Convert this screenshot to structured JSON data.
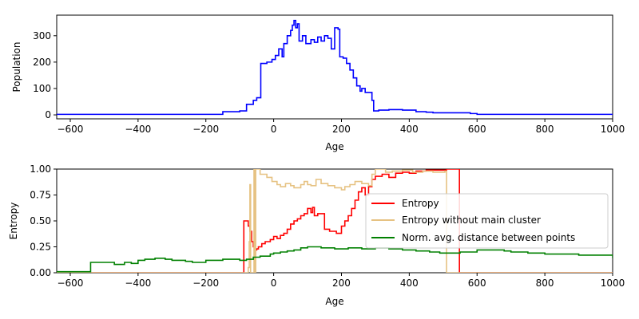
{
  "chart_data": [
    {
      "type": "line",
      "xlabel": "Age",
      "ylabel": "Population",
      "xlim": [
        -640,
        1000
      ],
      "ylim": [
        -15,
        378
      ],
      "xticks": [
        -600,
        -400,
        -200,
        0,
        200,
        400,
        600,
        800,
        1000
      ],
      "yticks": [
        0,
        100,
        200,
        300
      ],
      "grid": false,
      "series": [
        {
          "color": "#0000ff",
          "step": true,
          "points": [
            [
              -640,
              2
            ],
            [
              -160,
              2
            ],
            [
              -150,
              12
            ],
            [
              -100,
              15
            ],
            [
              -80,
              40
            ],
            [
              -60,
              55
            ],
            [
              -50,
              65
            ],
            [
              -40,
              65
            ],
            [
              -38,
              195
            ],
            [
              -20,
              200
            ],
            [
              -5,
              210
            ],
            [
              5,
              225
            ],
            [
              15,
              250
            ],
            [
              25,
              220
            ],
            [
              30,
              270
            ],
            [
              40,
              300
            ],
            [
              50,
              320
            ],
            [
              55,
              340
            ],
            [
              60,
              358
            ],
            [
              65,
              330
            ],
            [
              70,
              345
            ],
            [
              75,
              280
            ],
            [
              85,
              300
            ],
            [
              95,
              270
            ],
            [
              110,
              285
            ],
            [
              120,
              275
            ],
            [
              130,
              295
            ],
            [
              140,
              280
            ],
            [
              150,
              300
            ],
            [
              160,
              290
            ],
            [
              170,
              250
            ],
            [
              180,
              330
            ],
            [
              190,
              325
            ],
            [
              195,
              220
            ],
            [
              205,
              215
            ],
            [
              215,
              195
            ],
            [
              225,
              170
            ],
            [
              235,
              140
            ],
            [
              245,
              110
            ],
            [
              255,
              90
            ],
            [
              260,
              100
            ],
            [
              270,
              85
            ],
            [
              280,
              85
            ],
            [
              290,
              55
            ],
            [
              295,
              15
            ],
            [
              310,
              18
            ],
            [
              340,
              20
            ],
            [
              380,
              18
            ],
            [
              420,
              12
            ],
            [
              450,
              10
            ],
            [
              470,
              8
            ],
            [
              520,
              8
            ],
            [
              580,
              5
            ],
            [
              600,
              2
            ],
            [
              1000,
              2
            ]
          ]
        }
      ]
    },
    {
      "type": "line",
      "xlabel": "Age",
      "ylabel": "Entropy",
      "xlim": [
        -640,
        1000
      ],
      "ylim": [
        0,
        1
      ],
      "xticks": [
        -600,
        -400,
        -200,
        0,
        200,
        400,
        600,
        800,
        1000
      ],
      "yticks": [
        0.0,
        0.25,
        0.5,
        0.75,
        1.0
      ],
      "ytick_labels": [
        "0.00",
        "0.25",
        "0.50",
        "0.75",
        "1.00"
      ],
      "grid": false,
      "legend": {
        "position": "center-right",
        "entries": [
          "Entropy",
          "Entropy without main cluster",
          "Norm. avg. distance between points"
        ]
      },
      "series": [
        {
          "name": "Entropy",
          "color": "#ff0000",
          "step": true,
          "points": [
            [
              -640,
              0
            ],
            [
              -90,
              0
            ],
            [
              -88,
              0.5
            ],
            [
              -80,
              0.5
            ],
            [
              -75,
              0.45
            ],
            [
              -70,
              0.4
            ],
            [
              -65,
              0.3
            ],
            [
              -60,
              0.25
            ],
            [
              -55,
              0.22
            ],
            [
              -50,
              0.23
            ],
            [
              -45,
              0.25
            ],
            [
              -35,
              0.28
            ],
            [
              -25,
              0.3
            ],
            [
              -10,
              0.32
            ],
            [
              0,
              0.35
            ],
            [
              10,
              0.33
            ],
            [
              20,
              0.36
            ],
            [
              30,
              0.38
            ],
            [
              40,
              0.42
            ],
            [
              50,
              0.47
            ],
            [
              60,
              0.5
            ],
            [
              70,
              0.52
            ],
            [
              80,
              0.55
            ],
            [
              90,
              0.57
            ],
            [
              100,
              0.62
            ],
            [
              110,
              0.58
            ],
            [
              115,
              0.63
            ],
            [
              120,
              0.55
            ],
            [
              130,
              0.57
            ],
            [
              150,
              0.42
            ],
            [
              165,
              0.4
            ],
            [
              185,
              0.38
            ],
            [
              200,
              0.45
            ],
            [
              210,
              0.5
            ],
            [
              220,
              0.55
            ],
            [
              230,
              0.62
            ],
            [
              240,
              0.7
            ],
            [
              250,
              0.78
            ],
            [
              260,
              0.82
            ],
            [
              270,
              0.75
            ],
            [
              280,
              0.83
            ],
            [
              290,
              0.9
            ],
            [
              300,
              0.93
            ],
            [
              320,
              0.95
            ],
            [
              340,
              0.92
            ],
            [
              360,
              0.96
            ],
            [
              380,
              0.97
            ],
            [
              400,
              0.96
            ],
            [
              420,
              0.98
            ],
            [
              450,
              0.99
            ],
            [
              480,
              0.99
            ],
            [
              510,
              1.0
            ],
            [
              545,
              1.0
            ],
            [
              548,
              0
            ],
            [
              1000,
              0
            ]
          ]
        },
        {
          "name": "Entropy without main cluster",
          "color": "#e6c282",
          "step": true,
          "points": [
            [
              -640,
              0
            ],
            [
              -80,
              0
            ],
            [
              -75,
              0.05
            ],
            [
              -72,
              0.3
            ],
            [
              -70,
              0.85
            ],
            [
              -68,
              0.0
            ],
            [
              -60,
              0.0
            ],
            [
              -58,
              1.0
            ],
            [
              -55,
              0.0
            ],
            [
              -53,
              1.0
            ],
            [
              -40,
              0.95
            ],
            [
              -20,
              0.92
            ],
            [
              -5,
              0.88
            ],
            [
              10,
              0.85
            ],
            [
              20,
              0.83
            ],
            [
              35,
              0.86
            ],
            [
              50,
              0.84
            ],
            [
              60,
              0.82
            ],
            [
              80,
              0.85
            ],
            [
              90,
              0.88
            ],
            [
              100,
              0.85
            ],
            [
              110,
              0.84
            ],
            [
              125,
              0.9
            ],
            [
              140,
              0.86
            ],
            [
              160,
              0.84
            ],
            [
              180,
              0.82
            ],
            [
              200,
              0.8
            ],
            [
              210,
              0.83
            ],
            [
              225,
              0.85
            ],
            [
              240,
              0.88
            ],
            [
              260,
              0.86
            ],
            [
              280,
              0.84
            ],
            [
              290,
              0.95
            ],
            [
              300,
              1.0
            ],
            [
              330,
              0.97
            ],
            [
              350,
              0.98
            ],
            [
              380,
              0.99
            ],
            [
              410,
              0.97
            ],
            [
              440,
              0.98
            ],
            [
              470,
              0.97
            ],
            [
              495,
              0.97
            ],
            [
              505,
              0.98
            ],
            [
              510,
              0
            ],
            [
              1000,
              0
            ]
          ]
        },
        {
          "name": "Norm. avg. distance between points",
          "color": "#008000",
          "step": true,
          "points": [
            [
              -640,
              0.01
            ],
            [
              -545,
              0.01
            ],
            [
              -540,
              0.1
            ],
            [
              -480,
              0.1
            ],
            [
              -470,
              0.08
            ],
            [
              -440,
              0.1
            ],
            [
              -420,
              0.09
            ],
            [
              -400,
              0.12
            ],
            [
              -380,
              0.13
            ],
            [
              -350,
              0.14
            ],
            [
              -320,
              0.13
            ],
            [
              -300,
              0.12
            ],
            [
              -260,
              0.11
            ],
            [
              -240,
              0.1
            ],
            [
              -200,
              0.12
            ],
            [
              -150,
              0.13
            ],
            [
              -100,
              0.12
            ],
            [
              -80,
              0.13
            ],
            [
              -60,
              0.15
            ],
            [
              -40,
              0.16
            ],
            [
              -10,
              0.18
            ],
            [
              0,
              0.19
            ],
            [
              20,
              0.2
            ],
            [
              40,
              0.21
            ],
            [
              60,
              0.22
            ],
            [
              80,
              0.24
            ],
            [
              100,
              0.25
            ],
            [
              140,
              0.24
            ],
            [
              180,
              0.23
            ],
            [
              220,
              0.24
            ],
            [
              260,
              0.23
            ],
            [
              300,
              0.24
            ],
            [
              340,
              0.23
            ],
            [
              380,
              0.22
            ],
            [
              420,
              0.21
            ],
            [
              460,
              0.2
            ],
            [
              490,
              0.19
            ],
            [
              520,
              0.19
            ],
            [
              550,
              0.2
            ],
            [
              600,
              0.22
            ],
            [
              640,
              0.22
            ],
            [
              680,
              0.21
            ],
            [
              700,
              0.2
            ],
            [
              750,
              0.19
            ],
            [
              800,
              0.18
            ],
            [
              850,
              0.18
            ],
            [
              900,
              0.17
            ],
            [
              950,
              0.17
            ],
            [
              995,
              0.17
            ],
            [
              1000,
              0.14
            ]
          ]
        }
      ]
    }
  ]
}
